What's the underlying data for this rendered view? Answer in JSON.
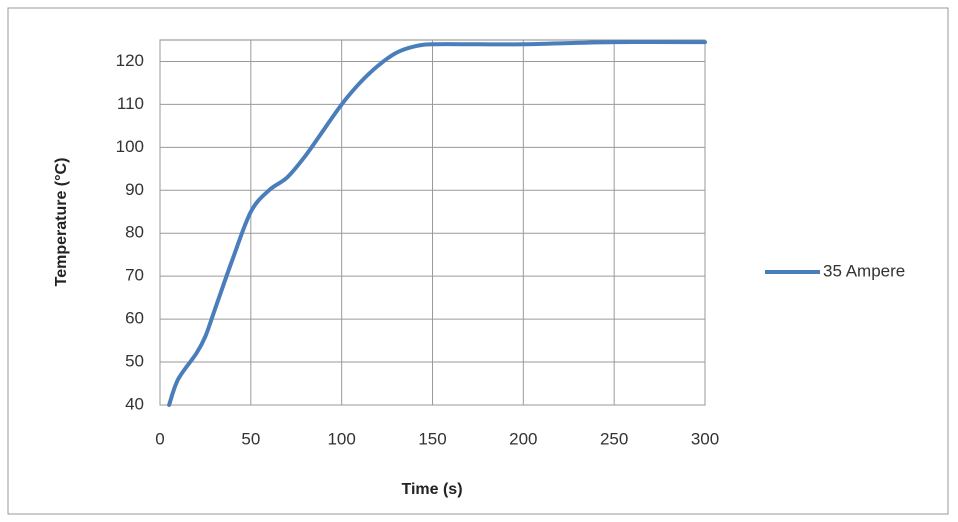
{
  "chart_data": {
    "type": "line",
    "x_label": "Time (s)",
    "y_label": "Temperature (°C)",
    "x": [
      5,
      10,
      20,
      25,
      30,
      40,
      50,
      60,
      70,
      80,
      90,
      100,
      110,
      120,
      130,
      140,
      150,
      175,
      200,
      250,
      300
    ],
    "series": [
      {
        "name": "35 Ampere",
        "color": "#4a7ebb",
        "values": [
          40,
          46,
          52,
          56,
          62,
          74,
          85,
          90,
          93,
          98,
          104,
          110,
          115,
          119,
          122,
          123.5,
          124,
          124,
          124,
          124.5,
          124.5
        ]
      }
    ],
    "xlim": [
      0,
      300
    ],
    "xticks": [
      0,
      50,
      100,
      150,
      200,
      250,
      300
    ],
    "ylim": [
      40,
      125
    ],
    "yticks": [
      40,
      50,
      60,
      70,
      80,
      90,
      100,
      110,
      120
    ],
    "grid": true,
    "legend": "right"
  }
}
